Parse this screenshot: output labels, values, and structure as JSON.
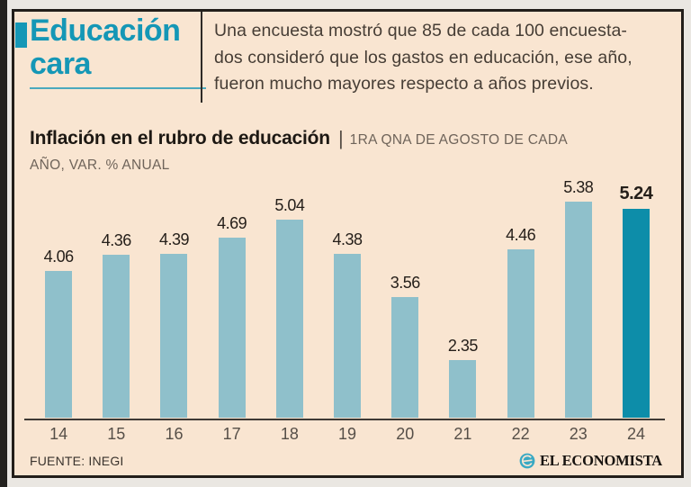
{
  "header": {
    "title_lines": [
      "Educación",
      "cara"
    ],
    "title_color": "#1597b6",
    "description_lines": [
      "Una encuesta mostró que 85 de cada 100 encuesta-",
      "dos consideró que los gastos en educación, ese año,",
      "fueron mucho mayores respecto a años previos."
    ]
  },
  "chart_heading": {
    "title": "Inflación en el rubro de educación",
    "separator": "|",
    "subtitle_line1": "1RA QNA DE AGOSTO DE CADA",
    "subtitle_line2": "AÑO, VAR. % ANUAL"
  },
  "chart_data": {
    "type": "bar",
    "title": "Inflación en el rubro de educación",
    "subtitle": "1RA QNA DE AGOSTO DE CADA AÑO, VAR. % ANUAL",
    "categories": [
      "14",
      "15",
      "16",
      "17",
      "18",
      "19",
      "20",
      "21",
      "22",
      "23",
      "24"
    ],
    "values": [
      4.06,
      4.36,
      4.39,
      4.69,
      5.04,
      4.38,
      3.56,
      2.35,
      4.46,
      5.38,
      5.24
    ],
    "value_labels": [
      "4.06",
      "4.36",
      "4.39",
      "4.69",
      "5.04",
      "4.38",
      "3.56",
      "2.35",
      "4.46",
      "5.38",
      "5.24"
    ],
    "highlight_index": 10,
    "bar_color": "#8fc0cb",
    "highlight_bar_color": "#0d8da9",
    "ylim": [
      1.25,
      5.38
    ],
    "grid": false,
    "legend": "none",
    "xlabel": "",
    "ylabel": ""
  },
  "footer": {
    "source": "FUENTE: INEGI",
    "brand": "EL ECONOMISTA",
    "brand_icon_color": "#3aa9c3"
  }
}
